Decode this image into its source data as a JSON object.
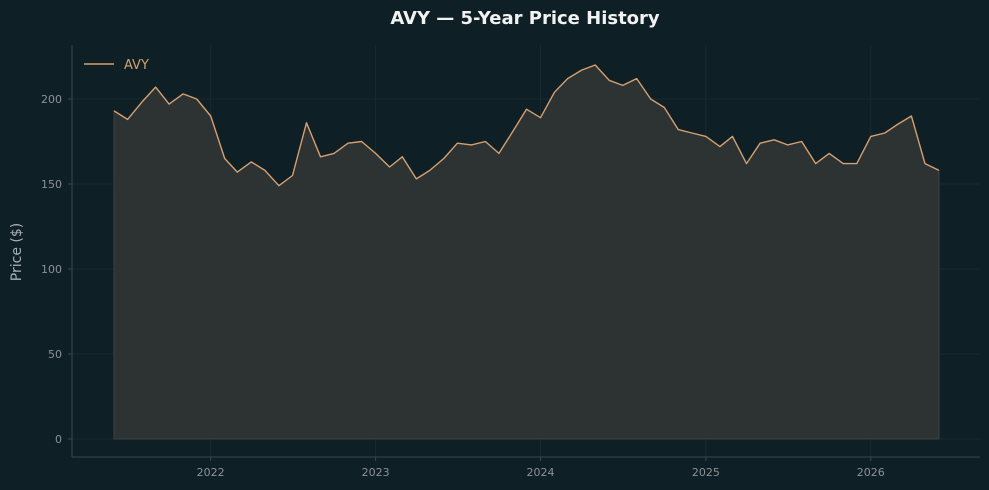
{
  "chart_data": {
    "type": "area",
    "title": "AVY — 5-Year Price History",
    "xlabel": "",
    "ylabel": "Price ($)",
    "xlim": [
      "2021-06-01",
      "2026-06-01"
    ],
    "ylim": [
      0,
      225
    ],
    "x_ticks": [
      "2022",
      "2023",
      "2024",
      "2025",
      "2026"
    ],
    "y_ticks": [
      0,
      50,
      100,
      150,
      200
    ],
    "grid": true,
    "legend_position": "top-left",
    "colors": {
      "line": "#d4a070",
      "fill": "#2d3233",
      "background": "#0f1f26",
      "axes": "#3a474b"
    },
    "series": [
      {
        "name": "AVY",
        "x": [
          "2021-06-01",
          "2021-07-01",
          "2021-08-01",
          "2021-09-01",
          "2021-10-01",
          "2021-11-01",
          "2021-12-01",
          "2022-01-01",
          "2022-02-01",
          "2022-03-01",
          "2022-04-01",
          "2022-05-01",
          "2022-06-01",
          "2022-07-01",
          "2022-08-01",
          "2022-09-01",
          "2022-10-01",
          "2022-11-01",
          "2022-12-01",
          "2023-01-01",
          "2023-02-01",
          "2023-03-01",
          "2023-04-01",
          "2023-05-01",
          "2023-06-01",
          "2023-07-01",
          "2023-08-01",
          "2023-09-01",
          "2023-10-01",
          "2023-11-01",
          "2023-12-01",
          "2024-01-01",
          "2024-02-01",
          "2024-03-01",
          "2024-04-01",
          "2024-05-01",
          "2024-06-01",
          "2024-07-01",
          "2024-08-01",
          "2024-09-01",
          "2024-10-01",
          "2024-11-01",
          "2024-12-01",
          "2025-01-01",
          "2025-02-01",
          "2025-03-01",
          "2025-04-01",
          "2025-05-01",
          "2025-06-01",
          "2025-07-01",
          "2025-08-01",
          "2025-09-01",
          "2025-10-01",
          "2025-11-01",
          "2025-12-01",
          "2026-01-01",
          "2026-02-01",
          "2026-03-01",
          "2026-04-01",
          "2026-05-01",
          "2026-06-01"
        ],
        "values": [
          193,
          188,
          198,
          207,
          197,
          203,
          200,
          190,
          165,
          157,
          163,
          158,
          149,
          155,
          186,
          166,
          168,
          174,
          175,
          168,
          160,
          166,
          153,
          158,
          165,
          174,
          173,
          175,
          168,
          181,
          194,
          189,
          204,
          212,
          217,
          220,
          211,
          208,
          212,
          200,
          195,
          182,
          180,
          178,
          172,
          178,
          162,
          174,
          176,
          173,
          175,
          162,
          168,
          162,
          162,
          178,
          180,
          185,
          190,
          162,
          158
        ]
      }
    ]
  }
}
